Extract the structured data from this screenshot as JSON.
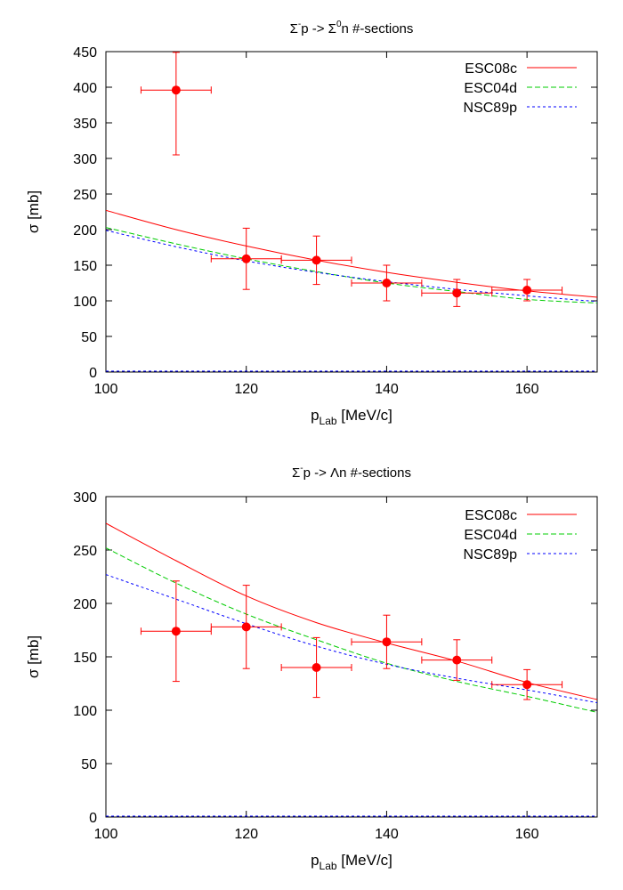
{
  "colors": {
    "esc08c": "#ff0000",
    "esc04d": "#00cc00",
    "nsc89p": "#0000ff",
    "data": "#ff0000",
    "axis": "#000000"
  },
  "chart_data": [
    {
      "type": "line",
      "title": {
        "main": "Σ",
        "sup1": "-",
        "mid": "p -> Σ",
        "sup2": "0",
        "tail": "n #-sections"
      },
      "xlabel": {
        "main": "p",
        "sub": "Lab",
        "tail": " [MeV/c]"
      },
      "ylabel": "σ [mb]",
      "xlim": [
        100,
        170
      ],
      "ylim": [
        0,
        450
      ],
      "xticks": [
        100,
        120,
        140,
        160
      ],
      "yticks": [
        0,
        50,
        100,
        150,
        200,
        250,
        300,
        350,
        400,
        450
      ],
      "grid": false,
      "legend_position": "top-right",
      "series": [
        {
          "name": "ESC08c",
          "style": "solid",
          "color": "#ff0000",
          "x": [
            100,
            110,
            120,
            130,
            140,
            150,
            160,
            170
          ],
          "y": [
            227,
            200,
            177,
            157,
            140,
            126,
            114,
            105
          ]
        },
        {
          "name": "ESC04d",
          "style": "dashed",
          "color": "#00cc00",
          "x": [
            100,
            110,
            120,
            130,
            140,
            150,
            160,
            170
          ],
          "y": [
            203,
            180,
            159,
            141,
            125,
            113,
            102,
            97
          ]
        },
        {
          "name": "NSC89p",
          "style": "dotted",
          "color": "#0000ff",
          "x": [
            100,
            110,
            120,
            130,
            140,
            150,
            160,
            170
          ],
          "y": [
            199,
            176,
            156,
            140,
            127,
            116,
            107,
            99
          ]
        }
      ],
      "points": [
        {
          "x": 110,
          "y": 396,
          "xerr": 5,
          "yerr": [
            91,
            53
          ]
        },
        {
          "x": 120,
          "y": 159,
          "xerr": 5,
          "yerr": [
            43,
            43
          ]
        },
        {
          "x": 130,
          "y": 157,
          "xerr": 5,
          "yerr": [
            34,
            34
          ]
        },
        {
          "x": 140,
          "y": 125,
          "xerr": 5,
          "yerr": [
            25,
            25
          ]
        },
        {
          "x": 150,
          "y": 111,
          "xerr": 5,
          "yerr": [
            19,
            19
          ]
        },
        {
          "x": 160,
          "y": 115,
          "xerr": 5,
          "yerr": [
            15,
            15
          ]
        }
      ]
    },
    {
      "type": "line",
      "title": {
        "main": "Σ",
        "sup1": "-",
        "mid": "p -> Λ",
        "sup2": "",
        "tail": "n #-sections"
      },
      "xlabel": {
        "main": "p",
        "sub": "Lab",
        "tail": " [MeV/c]"
      },
      "ylabel": "σ [mb]",
      "xlim": [
        100,
        170
      ],
      "ylim": [
        0,
        300
      ],
      "xticks": [
        100,
        120,
        140,
        160
      ],
      "yticks": [
        0,
        50,
        100,
        150,
        200,
        250,
        300
      ],
      "grid": false,
      "legend_position": "top-right",
      "series": [
        {
          "name": "ESC08c",
          "style": "solid",
          "color": "#ff0000",
          "x": [
            100,
            110,
            120,
            130,
            140,
            150,
            160,
            170
          ],
          "y": [
            275,
            240,
            207,
            182,
            163,
            146,
            126,
            110
          ]
        },
        {
          "name": "ESC04d",
          "style": "dashed",
          "color": "#00cc00",
          "x": [
            100,
            110,
            120,
            130,
            140,
            150,
            160,
            170
          ],
          "y": [
            252,
            219,
            190,
            166,
            144,
            127,
            113,
            98
          ]
        },
        {
          "name": "NSC89p",
          "style": "dotted",
          "color": "#0000ff",
          "x": [
            100,
            110,
            120,
            130,
            140,
            150,
            160,
            170
          ],
          "y": [
            227,
            204,
            181,
            160,
            143,
            130,
            119,
            107
          ]
        }
      ],
      "points": [
        {
          "x": 110,
          "y": 174,
          "xerr": 5,
          "yerr": [
            47,
            47
          ]
        },
        {
          "x": 120,
          "y": 178,
          "xerr": 5,
          "yerr": [
            39,
            39
          ]
        },
        {
          "x": 130,
          "y": 140,
          "xerr": 5,
          "yerr": [
            28,
            28
          ]
        },
        {
          "x": 140,
          "y": 164,
          "xerr": 5,
          "yerr": [
            25,
            25
          ]
        },
        {
          "x": 150,
          "y": 147,
          "xerr": 5,
          "yerr": [
            19,
            19
          ]
        },
        {
          "x": 160,
          "y": 124,
          "xerr": 5,
          "yerr": [
            14,
            14
          ]
        }
      ]
    }
  ]
}
